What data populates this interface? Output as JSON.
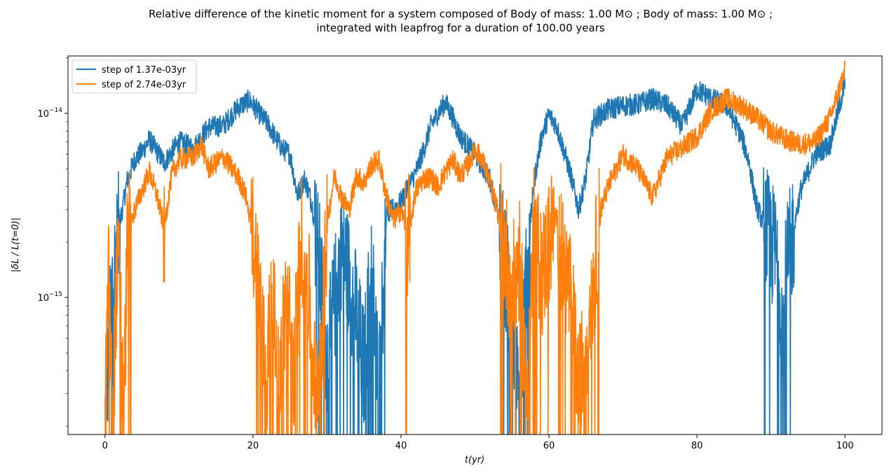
{
  "chart_data": {
    "type": "line",
    "title_line1": "Relative difference of the kinetic moment for a system composed of Body of mass: 1.00 M⊙ ; Body of mass: 1.00 M⊙ ;",
    "title_line2": "integrated with leapfrog for a duration of 100.00 years",
    "xlabel": "t(yr)",
    "ylabel": "|δL / L(t=0)|",
    "y_scale": "log",
    "xlim": [
      -5,
      105
    ],
    "ylim": [
      1.8e-16,
      2.05e-14
    ],
    "x_ticks": [
      0,
      20,
      40,
      60,
      80,
      100
    ],
    "x_tick_labels": [
      "0",
      "20",
      "40",
      "60",
      "80",
      "100"
    ],
    "y_ticks": [
      1e-15,
      1e-14
    ],
    "y_tick_labels": [
      {
        "base": "10",
        "exp": "−15"
      },
      {
        "base": "10",
        "exp": "−14"
      }
    ],
    "legend_position": "top-left",
    "grid": false,
    "series": [
      {
        "name": "step of 1.37e-03yr",
        "color": "#1f77b4",
        "x": [
          0,
          1,
          2,
          3,
          4,
          5,
          6,
          8,
          10,
          12,
          14,
          16,
          18,
          19.5,
          21,
          22,
          23,
          24,
          25,
          26,
          27,
          28,
          29,
          30,
          32,
          34,
          35,
          36,
          37,
          38,
          40,
          42,
          43,
          44,
          45,
          46,
          47,
          48,
          50,
          52,
          53,
          54,
          55,
          56,
          57,
          58,
          59,
          60,
          61,
          62,
          63,
          64,
          65,
          66,
          68,
          70,
          72,
          74,
          76,
          78,
          80,
          82,
          84,
          86,
          87,
          88,
          89,
          90,
          91,
          91.6,
          92,
          93,
          94,
          96,
          98,
          99,
          100
        ],
        "y": [
          2e-16,
          1.2e-15,
          2.5e-15,
          4.3e-15,
          5.6e-15,
          6.2e-15,
          7.2e-15,
          5.4e-15,
          7e-15,
          6.5e-15,
          8.4e-15,
          8.6e-15,
          1.08e-14,
          1.18e-14,
          9.8e-15,
          8.8e-15,
          7.4e-15,
          6.4e-15,
          6e-15,
          3.6e-15,
          4.4e-15,
          3.2e-15,
          1.5e-15,
          4.5e-16,
          2e-15,
          8e-16,
          4e-16,
          1.5e-15,
          3e-16,
          2.8e-15,
          3.3e-15,
          4.8e-15,
          6.2e-15,
          8.5e-15,
          1e-14,
          1.15e-14,
          9.5e-15,
          7.5e-15,
          6e-15,
          4.4e-15,
          3e-15,
          1.6e-15,
          7e-16,
          2.5e-16,
          1.6e-15,
          4.3e-15,
          7.5e-15,
          9.8e-15,
          8.6e-15,
          6.3e-15,
          4.5e-15,
          3e-15,
          4.5e-15,
          9.2e-15,
          1.05e-14,
          1.1e-14,
          1.12e-14,
          1.2e-14,
          1.1e-14,
          8.5e-15,
          1.35e-14,
          1.2e-14,
          1.1e-14,
          7.5e-15,
          5.5e-15,
          3.2e-15,
          2.5e-15,
          2e-15,
          1.6e-15,
          6.5e-16,
          1.3e-15,
          2.3e-15,
          3.8e-15,
          6e-15,
          6.8e-15,
          1e-14,
          1.45e-14
        ]
      },
      {
        "name": "step of 2.74e-03yr",
        "color": "#ff7f0e",
        "x": [
          0,
          0.5,
          1,
          1.5,
          2,
          2.5,
          3,
          3.5,
          4,
          5,
          6,
          7,
          8,
          9,
          10,
          12,
          13,
          14,
          16,
          18,
          19,
          20,
          21,
          21.8,
          22.5,
          23.5,
          24.5,
          25.5,
          26.5,
          27.5,
          28.5,
          29.5,
          30,
          31,
          32,
          33,
          34,
          35,
          36,
          37,
          38,
          39,
          40,
          41,
          42,
          43,
          44,
          45,
          46,
          47,
          48,
          49,
          50,
          51,
          52,
          53,
          54,
          55,
          56,
          57,
          58,
          59,
          60,
          61,
          62,
          63,
          64,
          65,
          66,
          67,
          68,
          70,
          72,
          74,
          76,
          78,
          80,
          82,
          84,
          86,
          88,
          90,
          92,
          94,
          96,
          98,
          100
        ],
        "y": [
          2e-16,
          1.3e-15,
          2e-16,
          1.1e-15,
          1.5e-15,
          2e-16,
          1.8e-15,
          2.5e-15,
          3e-15,
          3.8e-15,
          4.8e-15,
          3.6e-15,
          2.4e-15,
          4.6e-15,
          5.6e-15,
          5.8e-15,
          6.8e-15,
          5e-15,
          5.8e-15,
          4.5e-15,
          3.6e-15,
          2.2e-15,
          1e-15,
          3e-16,
          1.3e-15,
          3e-16,
          1.1e-15,
          4e-16,
          2.2e-15,
          1.1e-15,
          3e-16,
          8e-16,
          2.5e-15,
          4.6e-15,
          3.5e-15,
          3e-15,
          4.6e-15,
          4.2e-15,
          5.2e-15,
          5.6e-15,
          3.6e-15,
          2.6e-15,
          3e-15,
          2.2e-15,
          3.8e-15,
          4.4e-15,
          4.5e-15,
          4e-15,
          4.8e-15,
          5.6e-15,
          4.6e-15,
          5.2e-15,
          6.4e-15,
          5.6e-15,
          4.2e-15,
          3e-15,
          1.9e-15,
          1.1e-15,
          1.6e-15,
          3e-16,
          2.4e-15,
          1.3e-15,
          2e-15,
          2.8e-15,
          1.5e-15,
          1e-15,
          3e-16,
          6e-16,
          1.2e-15,
          3e-15,
          4e-15,
          6e-15,
          5e-15,
          3.5e-15,
          5.8e-15,
          6.5e-15,
          7.5e-15,
          1.05e-14,
          1.2e-14,
          1.1e-14,
          9.5e-15,
          8e-15,
          7.2e-15,
          6.8e-15,
          7e-15,
          9.5e-15,
          1.7e-14
        ]
      }
    ]
  }
}
